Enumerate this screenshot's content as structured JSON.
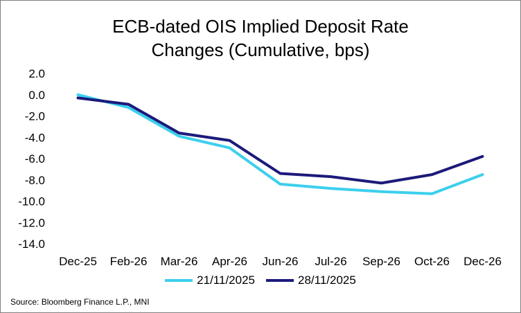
{
  "chart_data": {
    "type": "line",
    "title_lines": [
      "ECB-dated OIS Implied Deposit Rate",
      "Changes (Cumulative, bps)"
    ],
    "categories": [
      "Dec-25",
      "Feb-26",
      "Mar-26",
      "Apr-26",
      "Jun-26",
      "Jul-26",
      "Sep-26",
      "Oct-26",
      "Dec-26"
    ],
    "yticks": [
      "2.0",
      "0.0",
      "-2.0",
      "-4.0",
      "-6.0",
      "-8.0",
      "-10.0",
      "-12.0",
      "-14.0"
    ],
    "ylim": [
      -14,
      2
    ],
    "series": [
      {
        "name": "21/11/2025",
        "color": "#3ccfee",
        "values": [
          0.0,
          -1.2,
          -3.9,
          -5.0,
          -8.4,
          -8.8,
          -9.1,
          -9.3,
          -7.5
        ]
      },
      {
        "name": "28/11/2025",
        "color": "#1c1a7a",
        "values": [
          -0.3,
          -0.9,
          -3.6,
          -4.3,
          -7.4,
          -7.7,
          -8.3,
          -7.5,
          -5.8
        ]
      }
    ],
    "legend_position": "bottom",
    "source": "Source: Bloomberg Finance L.P., MNI"
  }
}
